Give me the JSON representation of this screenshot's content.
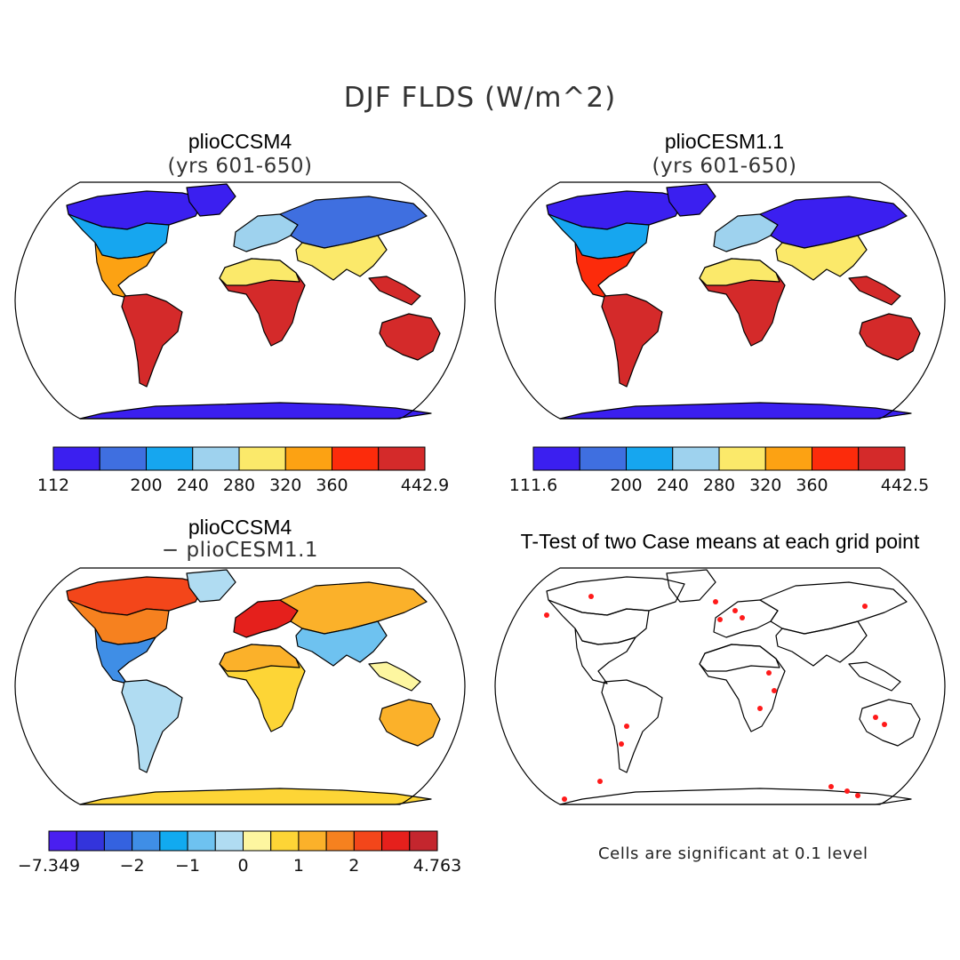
{
  "title": "DJF FLDS (W/m^2)",
  "panels": [
    {
      "title": "plioCCSM4",
      "subtitle": "(yrs 601-650)"
    },
    {
      "title": "plioCESM1.1",
      "subtitle": "(yrs 601-650)"
    },
    {
      "title": "plioCCSM4",
      "subtitle": "− plioCESM1.1"
    },
    {
      "title": "T-Test of two Case means at each grid point",
      "subtitle": ""
    }
  ],
  "colorbars": [
    {
      "colors": [
        "#3b1ff0",
        "#3f6fe0",
        "#16a6ef",
        "#9ed2ee",
        "#fbe96a",
        "#fca213",
        "#fc2b0b",
        "#d42a2a"
      ],
      "labels": [
        {
          "text": "112",
          "at": 0
        },
        {
          "text": "200",
          "at": 2
        },
        {
          "text": "240",
          "at": 3
        },
        {
          "text": "280",
          "at": 4
        },
        {
          "text": "320",
          "at": 5
        },
        {
          "text": "360",
          "at": 6
        },
        {
          "text": "442.9",
          "at": 8
        }
      ]
    },
    {
      "colors": [
        "#3b1ff0",
        "#3f6fe0",
        "#16a6ef",
        "#9ed2ee",
        "#fbe96a",
        "#fca213",
        "#fc2b0b",
        "#d42a2a"
      ],
      "labels": [
        {
          "text": "111.6",
          "at": 0
        },
        {
          "text": "200",
          "at": 2
        },
        {
          "text": "240",
          "at": 3
        },
        {
          "text": "280",
          "at": 4
        },
        {
          "text": "320",
          "at": 5
        },
        {
          "text": "360",
          "at": 6
        },
        {
          "text": "442.5",
          "at": 8
        }
      ]
    },
    {
      "colors": [
        "#4a1ff0",
        "#3334dc",
        "#3462e0",
        "#3f8ee6",
        "#11aaf0",
        "#6ec2f0",
        "#b0dcf2",
        "#fdf6a0",
        "#fdd536",
        "#fbb12a",
        "#f6811f",
        "#f3461a",
        "#e5201c",
        "#c4262e"
      ],
      "labels": [
        {
          "text": "−7.349",
          "at": 0
        },
        {
          "text": "−2",
          "at": 3
        },
        {
          "text": "−1",
          "at": 5
        },
        {
          "text": "0",
          "at": 7
        },
        {
          "text": "1",
          "at": 9
        },
        {
          "text": "2",
          "at": 11
        },
        {
          "text": "4.763",
          "at": 14
        }
      ]
    }
  ],
  "note": "Cells are significant at 0.1 level",
  "fields": {
    "panel1": [
      {
        "region": "north-america-arctic",
        "color": "#3b1ff0"
      },
      {
        "region": "north-america-mid",
        "color": "#16a6ef"
      },
      {
        "region": "north-america-south",
        "color": "#fca213"
      },
      {
        "region": "south-america",
        "color": "#d42a2a"
      },
      {
        "region": "africa",
        "color": "#d42a2a"
      },
      {
        "region": "europe",
        "color": "#9ed2ee"
      },
      {
        "region": "asia",
        "color": "#3f6fe0"
      },
      {
        "region": "australia",
        "color": "#d42a2a"
      },
      {
        "region": "antarctica",
        "color": "#3b1ff0"
      }
    ]
  }
}
